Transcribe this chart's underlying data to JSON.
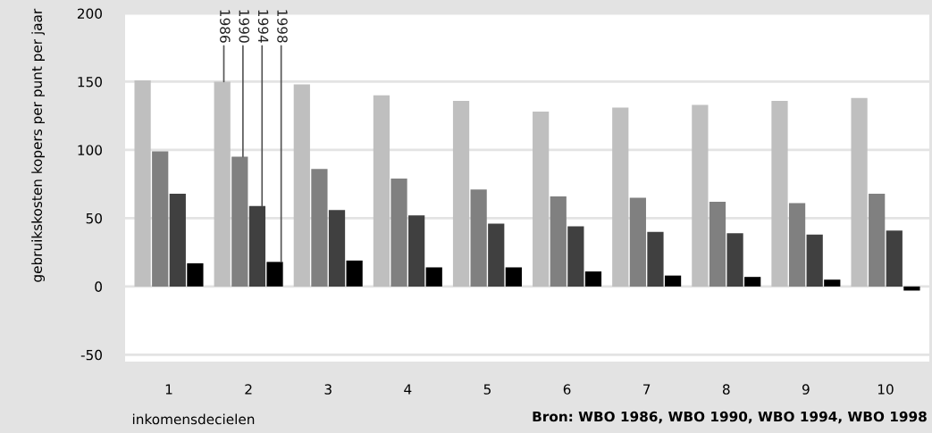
{
  "chart_data": {
    "type": "bar",
    "categories": [
      "1",
      "2",
      "3",
      "4",
      "5",
      "6",
      "7",
      "8",
      "9",
      "10"
    ],
    "series": [
      {
        "name": "1986",
        "color": "#bfbfbf",
        "values": [
          151,
          150,
          148,
          140,
          136,
          128,
          131,
          133,
          136,
          138
        ]
      },
      {
        "name": "1990",
        "color": "#808080",
        "values": [
          99,
          95,
          86,
          79,
          71,
          66,
          65,
          62,
          61,
          68
        ]
      },
      {
        "name": "1994",
        "color": "#404040",
        "values": [
          68,
          59,
          56,
          52,
          46,
          44,
          40,
          39,
          38,
          41
        ]
      },
      {
        "name": "1998",
        "color": "#000000",
        "values": [
          17,
          18,
          19,
          14,
          14,
          11,
          8,
          7,
          5,
          -3
        ]
      }
    ],
    "xlabel": "inkomensdecielen",
    "ylabel": "gebruikskosten kopers per punt per jaar",
    "ylim": [
      -55,
      200
    ],
    "yticks": [
      -50,
      0,
      50,
      100,
      150,
      200
    ],
    "grid": "y",
    "annotations": [
      "Bron: WBO 1986, WBO 1990, WBO 1994, WBO 1998"
    ]
  }
}
